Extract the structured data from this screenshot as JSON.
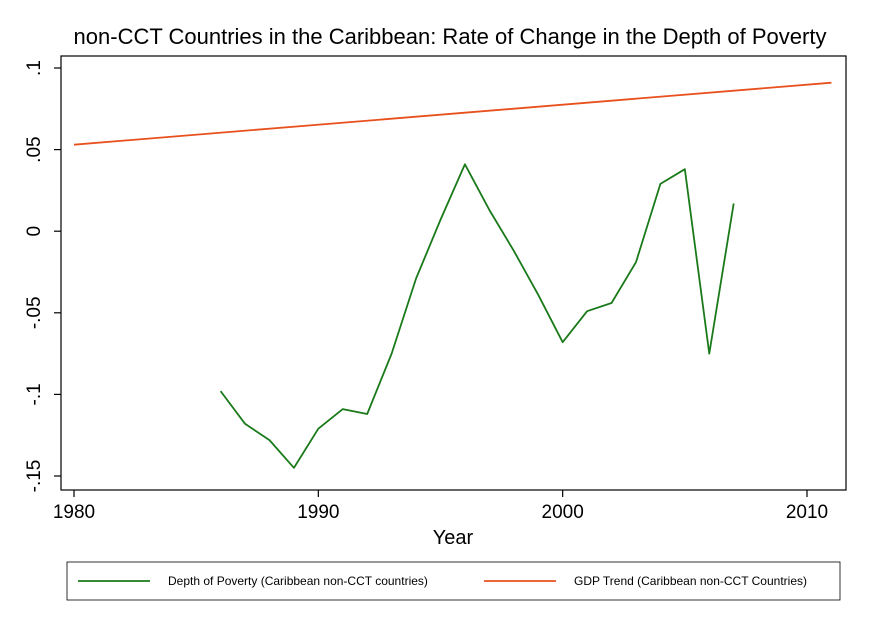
{
  "chart_data": {
    "type": "line",
    "title": "non-CCT Countries in the Caribbean: Rate of Change in the Depth of Poverty",
    "xlabel": "Year",
    "ylabel": "",
    "xlim": [
      1980,
      2012.5
    ],
    "ylim": [
      -0.155,
      0.105
    ],
    "xticks": [
      1980,
      1990,
      2000,
      2010
    ],
    "xtick_labels": [
      "1980",
      "1990",
      "2000",
      "2010"
    ],
    "yticks": [
      -0.15,
      -0.1,
      -0.05,
      0,
      0.05,
      0.1
    ],
    "ytick_labels": [
      "-.15",
      "-.1",
      "-.05",
      "0",
      ".05",
      ".1"
    ],
    "grid": false,
    "legend_position": "bottom",
    "series": [
      {
        "name": "Depth of Poverty (Caribbean non-CCT countries)",
        "color": "#1a7a1a",
        "x": [
          1986,
          1987,
          1988,
          1989,
          1990,
          1991,
          1992,
          1993,
          1994,
          1995,
          1996,
          1997,
          1998,
          1999,
          2000,
          2001,
          2002,
          2003,
          2004,
          2005,
          2006,
          2007
        ],
        "y": [
          -0.098,
          -0.118,
          -0.128,
          -0.145,
          -0.121,
          -0.109,
          -0.112,
          -0.075,
          -0.029,
          0.007,
          0.041,
          0.013,
          -0.012,
          -0.039,
          -0.068,
          -0.049,
          -0.044,
          -0.019,
          0.029,
          0.038,
          -0.075,
          0.017
        ]
      },
      {
        "name": "GDP Trend (Caribbean non-CCT Countries)",
        "color": "#e8501e",
        "x": [
          1980,
          2011
        ],
        "y": [
          0.053,
          0.091
        ]
      }
    ]
  }
}
